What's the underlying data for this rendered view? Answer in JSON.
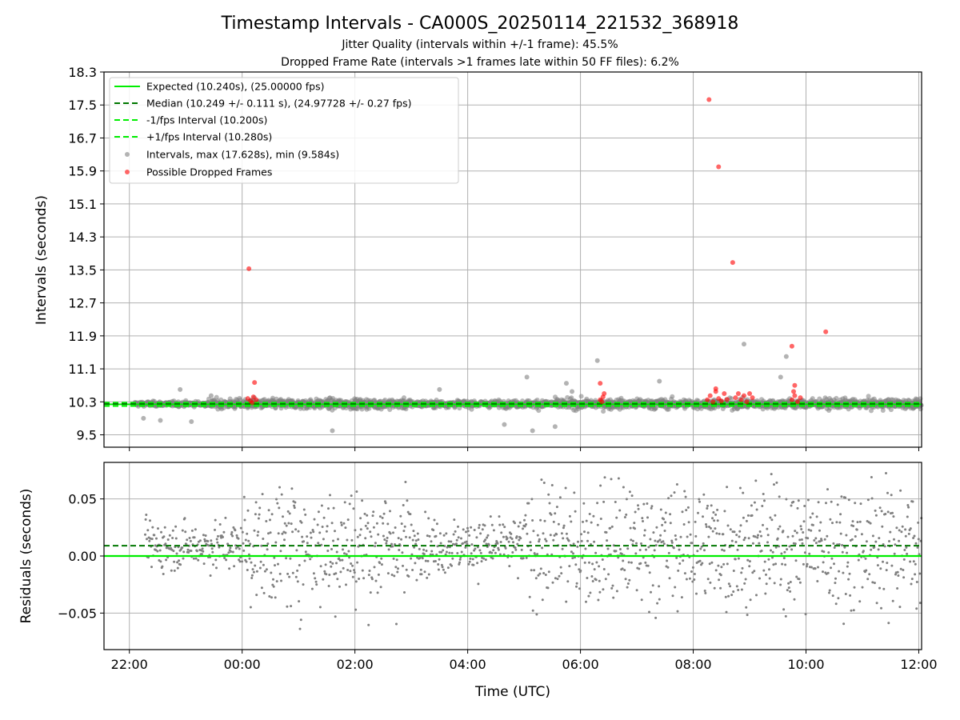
{
  "title": "Timestamp Intervals - CA000S_20250114_221532_368918",
  "subtitle_1": "Jitter Quality (intervals within +/-1 frame): 45.5%",
  "subtitle_2": "Dropped Frame Rate (intervals >1 frames late within 50 FF files): 6.2%",
  "colors": {
    "expected": "#00ee00",
    "median": "#007700",
    "interval_band": "#00ee00",
    "intervals": "#808080",
    "dropped": "#ff0000",
    "grid": "#b0b0b0"
  },
  "chart_data": [
    {
      "type": "scatter",
      "ylabel": "Intervals (seconds)",
      "xlabel": "",
      "x_ticks": [
        "22:00",
        "00:00",
        "02:00",
        "04:00",
        "06:00",
        "08:00",
        "10:00",
        "12:00"
      ],
      "x_tick_hours": [
        -2,
        0,
        2,
        4,
        6,
        8,
        10,
        12
      ],
      "x_range_hours": [
        -2.45,
        12.05
      ],
      "y_ticks": [
        "9.5",
        "10.3",
        "11.1",
        "11.9",
        "12.7",
        "13.5",
        "14.3",
        "15.1",
        "15.9",
        "16.7",
        "17.5",
        "18.3"
      ],
      "y_tick_values": [
        9.5,
        10.3,
        11.1,
        11.9,
        12.7,
        13.5,
        14.3,
        15.1,
        15.9,
        16.7,
        17.5,
        18.3
      ],
      "ylim": [
        9.2,
        18.3
      ],
      "grid": true,
      "legend_position": "top-left",
      "lines": {
        "expected": 10.24,
        "median": 10.249,
        "minus_one_frame": 10.2,
        "plus_one_frame": 10.28
      },
      "legend": [
        "Expected (10.240s), (25.00000 fps)",
        "Median (10.249 +/- 0.111 s), (24.97728 +/- 0.27 fps)",
        "-1/fps Interval (10.200s)",
        "+1/fps Interval (10.280s)",
        "Intervals, max (17.628s), min (9.584s)",
        "Possible Dropped Frames"
      ],
      "outlier_intervals": [
        [
          -1.75,
          9.9
        ],
        [
          -1.45,
          9.85
        ],
        [
          -1.1,
          10.6
        ],
        [
          -0.9,
          9.82
        ],
        [
          -0.55,
          10.45
        ],
        [
          1.6,
          9.6
        ],
        [
          3.5,
          10.6
        ],
        [
          4.65,
          9.75
        ],
        [
          5.05,
          10.9
        ],
        [
          5.15,
          9.6
        ],
        [
          5.55,
          9.7
        ],
        [
          5.75,
          10.75
        ],
        [
          5.85,
          10.55
        ],
        [
          6.3,
          11.3
        ],
        [
          7.4,
          10.8
        ],
        [
          8.9,
          11.7
        ],
        [
          9.65,
          11.4
        ],
        [
          9.55,
          10.9
        ]
      ],
      "dropped_frames": [
        [
          0.12,
          13.53
        ],
        [
          0.22,
          10.77
        ],
        [
          8.28,
          17.63
        ],
        [
          8.45,
          16.0
        ],
        [
          8.7,
          13.68
        ],
        [
          9.75,
          11.65
        ],
        [
          10.35,
          12.0
        ],
        [
          6.35,
          10.75
        ],
        [
          9.8,
          10.7
        ],
        [
          0.1,
          10.38
        ],
        [
          0.15,
          10.32
        ],
        [
          0.2,
          10.42
        ],
        [
          0.25,
          10.35
        ],
        [
          0.18,
          10.28
        ],
        [
          6.35,
          10.35
        ],
        [
          6.4,
          10.42
        ],
        [
          6.38,
          10.3
        ],
        [
          6.42,
          10.5
        ],
        [
          8.25,
          10.35
        ],
        [
          8.3,
          10.45
        ],
        [
          8.35,
          10.3
        ],
        [
          8.4,
          10.55
        ],
        [
          8.45,
          10.38
        ],
        [
          8.5,
          10.32
        ],
        [
          8.55,
          10.5
        ],
        [
          8.6,
          10.36
        ],
        [
          8.4,
          10.62
        ],
        [
          8.75,
          10.4
        ],
        [
          8.8,
          10.5
        ],
        [
          8.85,
          10.35
        ],
        [
          8.9,
          10.45
        ],
        [
          8.95,
          10.3
        ],
        [
          9.0,
          10.5
        ],
        [
          9.05,
          10.4
        ],
        [
          9.75,
          10.35
        ],
        [
          9.8,
          10.45
        ],
        [
          9.85,
          10.3
        ],
        [
          9.9,
          10.4
        ],
        [
          9.78,
          10.55
        ]
      ]
    },
    {
      "type": "scatter",
      "ylabel": "Residuals (seconds)",
      "xlabel": "Time (UTC)",
      "x_ticks": [
        "22:00",
        "00:00",
        "02:00",
        "04:00",
        "06:00",
        "08:00",
        "10:00",
        "12:00"
      ],
      "x_tick_hours": [
        -2,
        0,
        2,
        4,
        6,
        8,
        10,
        12
      ],
      "x_range_hours": [
        -2.45,
        12.05
      ],
      "y_ticks": [
        "0.05",
        "0.00",
        "−0.05"
      ],
      "y_tick_values": [
        0.05,
        0.0,
        -0.05
      ],
      "ylim": [
        -0.082,
        0.082
      ],
      "grid": true,
      "lines": {
        "expected": 0.0,
        "median": 0.009
      }
    }
  ]
}
